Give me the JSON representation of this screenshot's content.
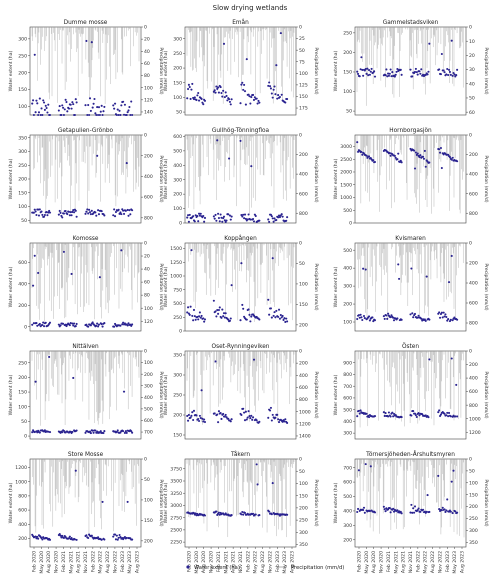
{
  "figure": {
    "title": "Slow drying wetlands",
    "colors": {
      "extent": "#2a2390",
      "precip": "#9a9a9a"
    }
  },
  "legend": {
    "extent_label": "Water extent (ha)",
    "precip_label": "Precipitation (mm/d)"
  },
  "chart_data": [
    {
      "type": "scatter",
      "title": "Dumme mosse",
      "ylabel": "Water extent (ha)",
      "y2label": "Precipitation (mm/d)",
      "ylim": [
        75,
        335
      ],
      "y2lim": [
        0,
        145
      ],
      "yticks": [
        100,
        150,
        200,
        250,
        300
      ],
      "y2ticks": [
        0,
        20,
        40,
        60,
        80,
        100,
        120,
        140
      ],
      "base": 95,
      "spread": 60,
      "trend": "flat"
    },
    {
      "type": "scatter",
      "title": "Emån",
      "ylabel": "Water extent (ha)",
      "y2label": "Precipitation (mm/d)",
      "ylim": [
        40,
        340
      ],
      "y2lim": [
        0,
        190
      ],
      "yticks": [
        50,
        100,
        150,
        200,
        250,
        300
      ],
      "y2ticks": [
        0,
        25,
        50,
        75,
        100,
        125,
        150,
        175
      ],
      "base": 85,
      "spread": 50,
      "trend": "decay"
    },
    {
      "type": "scatter",
      "title": "Gammelstadsviken",
      "ylabel": "Water extent (ha)",
      "y2label": "Precipitation (mm/d)",
      "ylim": [
        40,
        265
      ],
      "y2lim": [
        0,
        62
      ],
      "yticks": [
        50,
        100,
        150,
        200,
        250
      ],
      "y2ticks": [
        0,
        10,
        20,
        30,
        40,
        50,
        60
      ],
      "base": 148,
      "spread": 20,
      "trend": "flat"
    },
    {
      "type": "scatter",
      "title": "Getapulien-Grönbo",
      "ylabel": "Water extent (ha)",
      "y2label": "Precipitation (mm/d)",
      "ylim": [
        40,
        360
      ],
      "y2lim": [
        0,
        850
      ],
      "yticks": [
        50,
        100,
        150,
        200,
        250,
        300,
        350
      ],
      "y2ticks": [
        0,
        200,
        400,
        600,
        800
      ],
      "base": 75,
      "spread": 30,
      "trend": "flat"
    },
    {
      "type": "scatter",
      "title": "Gullhög-Tönningfloa",
      "ylabel": "Water extent (ha)",
      "y2label": "Precipitation (mm/d)",
      "ylim": [
        0,
        610
      ],
      "y2lim": [
        0,
        900
      ],
      "yticks": [
        0,
        100,
        200,
        300,
        400,
        500,
        600
      ],
      "y2ticks": [
        0,
        200,
        400,
        600,
        800
      ],
      "base": 35,
      "spread": 60,
      "trend": "flat"
    },
    {
      "type": "scatter",
      "title": "Hornborgasjön",
      "ylabel": "Water extent (ha)",
      "y2label": "Precipitation (mm/d)",
      "ylim": [
        0,
        3450
      ],
      "y2lim": [
        0,
        900
      ],
      "yticks": [
        0,
        500,
        1000,
        1500,
        2000,
        2500,
        3000
      ],
      "y2ticks": [
        0,
        200,
        400,
        600,
        800
      ],
      "base": 2450,
      "spread": 400,
      "trend": "high"
    },
    {
      "type": "scatter",
      "title": "Komosse",
      "ylabel": "Water extent (ha)",
      "y2label": "Precipitation (mm/d)",
      "ylim": [
        -40,
        780
      ],
      "y2lim": [
        0,
        135
      ],
      "yticks": [
        0,
        200,
        400,
        600
      ],
      "y2ticks": [
        0,
        20,
        40,
        60,
        80,
        100,
        120
      ],
      "base": 20,
      "spread": 40,
      "trend": "flat"
    },
    {
      "type": "scatter",
      "title": "Koppången",
      "ylabel": "Water extent (ha)",
      "y2label": "Precipitation (mm/d)",
      "ylim": [
        0,
        1600
      ],
      "y2lim": [
        0,
        215
      ],
      "yticks": [
        0,
        250,
        500,
        750,
        1000,
        1250,
        1500
      ],
      "y2ticks": [
        0,
        50,
        100,
        150,
        200
      ],
      "base": 200,
      "spread": 250,
      "trend": "decay"
    },
    {
      "type": "scatter",
      "title": "Kvismaren",
      "ylabel": "Water extent (ha)",
      "y2label": "Precipitation (mm/d)",
      "ylim": [
        50,
        540
      ],
      "y2lim": [
        0,
        880
      ],
      "yticks": [
        100,
        200,
        300,
        400,
        500
      ],
      "y2ticks": [
        0,
        200,
        400,
        600,
        800
      ],
      "base": 110,
      "spread": 40,
      "trend": "decay"
    },
    {
      "type": "scatter",
      "title": "Nittälven",
      "ylabel": "Water extent (ha)",
      "y2label": "Precipitation (mm/d)",
      "ylim": [
        -10,
        290
      ],
      "y2lim": [
        0,
        760
      ],
      "yticks": [
        0,
        50,
        100,
        150,
        200,
        250
      ],
      "y2ticks": [
        0,
        100,
        200,
        300,
        400,
        500,
        600,
        700
      ],
      "base": 15,
      "spread": 10,
      "trend": "flat"
    },
    {
      "type": "scatter",
      "title": "Oset-Rynningeviken",
      "ylabel": "Water extent (ha)",
      "y2label": "Precipitation (mm/d)",
      "ylim": [
        140,
        360
      ],
      "y2lim": [
        0,
        1450
      ],
      "yticks": [
        150,
        200,
        250,
        300,
        350
      ],
      "y2ticks": [
        0,
        200,
        400,
        600,
        800,
        1000,
        1200,
        1400
      ],
      "base": 185,
      "spread": 25,
      "trend": "decay"
    },
    {
      "type": "scatter",
      "title": "Östen",
      "ylabel": "Water extent (ha)",
      "y2label": "Precipitation (mm/d)",
      "ylim": [
        250,
        1000
      ],
      "y2lim": [
        0,
        1300
      ],
      "yticks": [
        300,
        400,
        500,
        600,
        700,
        800,
        900
      ],
      "y2ticks": [
        0,
        200,
        400,
        600,
        800,
        1000,
        1200
      ],
      "base": 440,
      "spread": 40,
      "trend": "decay"
    },
    {
      "type": "scatter",
      "title": "Store Mosse",
      "ylabel": "Water extent (ha)",
      "y2label": "Precipitation (mm/d)",
      "ylim": [
        80,
        1320
      ],
      "y2lim": [
        0,
        215
      ],
      "yticks": [
        200,
        400,
        600,
        800,
        1000,
        1200
      ],
      "y2ticks": [
        0,
        50,
        100,
        150,
        200
      ],
      "base": 190,
      "spread": 50,
      "trend": "decay"
    },
    {
      "type": "scatter",
      "title": "Tåkern",
      "ylabel": "Water extent (ha)",
      "y2label": "Precipitation (mm/d)",
      "ylim": [
        2150,
        3950
      ],
      "y2lim": [
        0,
        360
      ],
      "yticks": [
        2250,
        2500,
        2750,
        3000,
        3250,
        3500,
        3750
      ],
      "y2ticks": [
        0,
        50,
        100,
        150,
        200,
        250,
        300,
        350
      ],
      "base": 2800,
      "spread": 60,
      "trend": "decay"
    },
    {
      "type": "scatter",
      "title": "Törnersjöheden-Årshultsmyren",
      "ylabel": "Water extent (ha)",
      "y2label": "Precipitation (mm/d)",
      "ylim": [
        150,
        760
      ],
      "y2lim": [
        0,
        370
      ],
      "yticks": [
        200,
        300,
        400,
        500,
        600,
        700
      ],
      "y2ticks": [
        0,
        50,
        100,
        150,
        200,
        250,
        300,
        350
      ],
      "base": 390,
      "spread": 35,
      "trend": "decay"
    }
  ],
  "x_axis": {
    "ticks": [
      "Feb 2020",
      "May 2020",
      "Aug 2020",
      "Nov 2020",
      "Feb 2021",
      "May 2021",
      "Aug 2021",
      "Nov 2021",
      "Feb 2022",
      "May 2022",
      "Aug 2022",
      "Nov 2022",
      "Feb 2023",
      "May 2023",
      "Aug 2023"
    ]
  }
}
